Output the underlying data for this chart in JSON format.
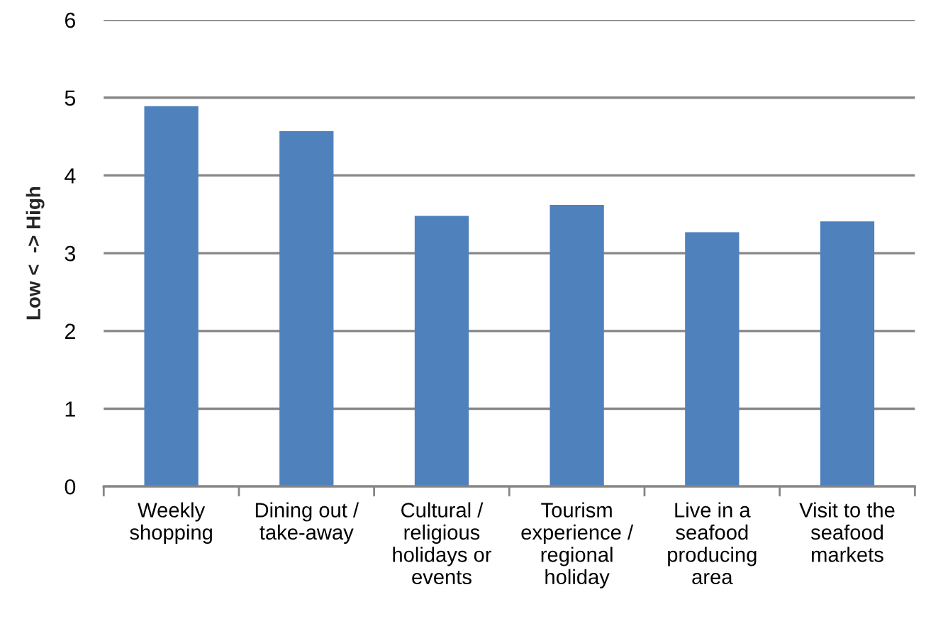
{
  "chart_data": {
    "type": "bar",
    "ylabel": "Low <  -> High",
    "categories": [
      "Weekly\nshopping",
      "Dining out /\ntake-away",
      "Cultural /\nreligious\nholidays or\nevents",
      "Tourism\nexperience /\nregional\nholiday",
      "Live in a\nseafood\nproducing\narea",
      "Visit to the\nseafood\nmarkets"
    ],
    "values": [
      4.89,
      4.57,
      3.48,
      3.62,
      3.27,
      3.41
    ],
    "color": "#4f81bd",
    "ylim": [
      0,
      6
    ],
    "yticks": [
      0,
      1,
      2,
      3,
      4,
      5,
      6
    ],
    "grid": "y"
  }
}
